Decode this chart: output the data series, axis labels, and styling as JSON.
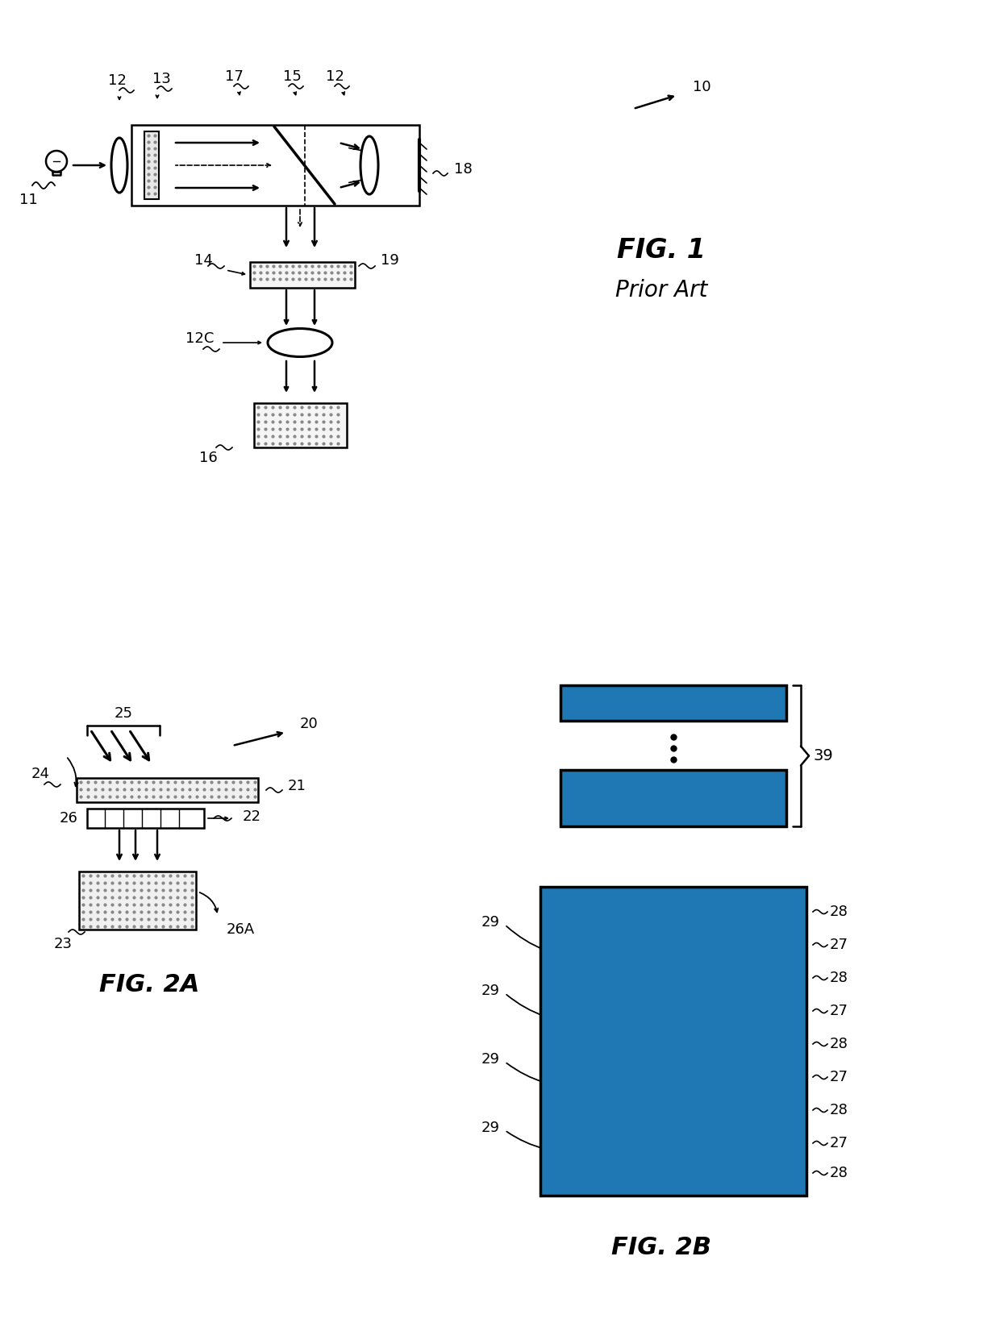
{
  "bg_color": "#ffffff",
  "fig_width": 12.4,
  "fig_height": 16.46,
  "fig1_label": "FIG. 1",
  "fig1_sublabel": "Prior Art",
  "fig2a_label": "FIG. 2A",
  "fig2b_label": "FIG. 2B"
}
